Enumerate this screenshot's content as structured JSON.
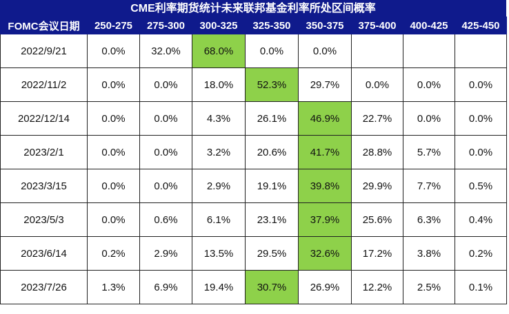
{
  "title": "CME利率期货统计未来联邦基金利率所处区间概率",
  "colors": {
    "header_bg": "#0f1a8c",
    "header_text": "#ffffff",
    "highlight": "#8ed14a",
    "border": "#1f1f1f"
  },
  "chart_data": {
    "type": "table",
    "title": "CME利率期货统计未来联邦基金利率所处区间概率",
    "columns": [
      "FOMC会议日期",
      "250-275",
      "275-300",
      "300-325",
      "325-350",
      "350-375",
      "375-400",
      "400-425",
      "425-450"
    ],
    "rows": [
      {
        "date": "2022/9/21",
        "values": [
          "0.0%",
          "32.0%",
          "68.0%",
          "0.0%",
          "0.0%",
          "",
          "",
          ""
        ],
        "highlight": 2
      },
      {
        "date": "2022/11/2",
        "values": [
          "0.0%",
          "0.0%",
          "18.0%",
          "52.3%",
          "29.7%",
          "0.0%",
          "0.0%",
          "0.0%"
        ],
        "highlight": 3
      },
      {
        "date": "2022/12/14",
        "values": [
          "0.0%",
          "0.0%",
          "4.3%",
          "26.1%",
          "46.9%",
          "22.7%",
          "0.0%",
          "0.0%"
        ],
        "highlight": 4
      },
      {
        "date": "2023/2/1",
        "values": [
          "0.0%",
          "0.0%",
          "3.2%",
          "20.6%",
          "41.7%",
          "28.8%",
          "5.7%",
          "0.0%"
        ],
        "highlight": 4
      },
      {
        "date": "2023/3/15",
        "values": [
          "0.0%",
          "0.0%",
          "2.9%",
          "19.1%",
          "39.8%",
          "29.9%",
          "7.7%",
          "0.5%"
        ],
        "highlight": 4
      },
      {
        "date": "2023/5/3",
        "values": [
          "0.0%",
          "0.6%",
          "6.1%",
          "23.1%",
          "37.9%",
          "25.6%",
          "6.3%",
          "0.4%"
        ],
        "highlight": 4
      },
      {
        "date": "2023/6/14",
        "values": [
          "0.2%",
          "2.9%",
          "13.5%",
          "29.5%",
          "32.6%",
          "17.2%",
          "3.8%",
          "0.2%"
        ],
        "highlight": 4
      },
      {
        "date": "2023/7/26",
        "values": [
          "1.3%",
          "6.9%",
          "19.4%",
          "30.7%",
          "26.9%",
          "12.2%",
          "2.5%",
          "0.1%"
        ],
        "highlight": 3
      }
    ]
  }
}
